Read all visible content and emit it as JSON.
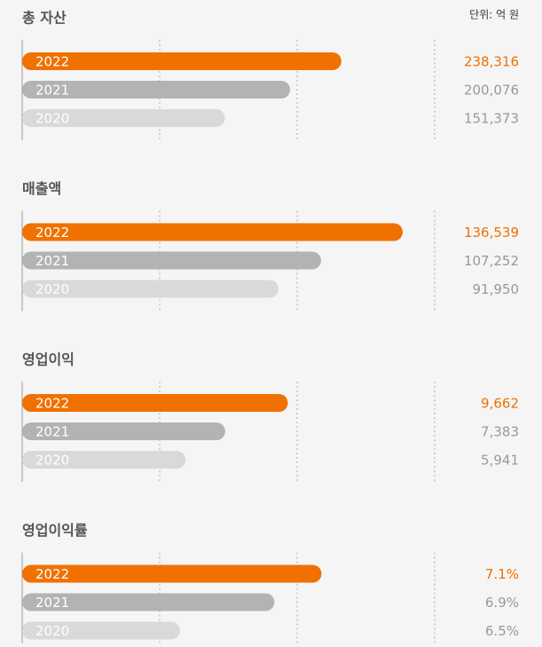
{
  "unit_label": "단위: 억 원",
  "chart_data": [
    {
      "type": "bar",
      "orientation": "horizontal",
      "title": "총 자산",
      "categories": [
        "2022",
        "2021",
        "2020"
      ],
      "values": [
        238316,
        200076,
        151373
      ],
      "value_labels": [
        "238,316",
        "200,076",
        "151,373"
      ],
      "colors": [
        "#f07100",
        "#b3b3b3",
        "#d9d9d9"
      ],
      "xlim": [
        0,
        308000
      ]
    },
    {
      "type": "bar",
      "orientation": "horizontal",
      "title": "매출액",
      "categories": [
        "2022",
        "2021",
        "2020"
      ],
      "values": [
        136539,
        107252,
        91950
      ],
      "value_labels": [
        "136,539",
        "107,252",
        "91,950"
      ],
      "colors": [
        "#f07100",
        "#b3b3b3",
        "#d9d9d9"
      ],
      "xlim": [
        0,
        148000
      ]
    },
    {
      "type": "bar",
      "orientation": "horizontal",
      "title": "영업이익",
      "categories": [
        "2022",
        "2021",
        "2020"
      ],
      "values": [
        9662,
        7383,
        5941
      ],
      "value_labels": [
        "9,662",
        "7,383",
        "5,941"
      ],
      "colors": [
        "#f07100",
        "#b3b3b3",
        "#d9d9d9"
      ],
      "xlim": [
        0,
        15000
      ]
    },
    {
      "type": "bar",
      "orientation": "horizontal",
      "title": "영업이익률",
      "categories": [
        "2022",
        "2021",
        "2020"
      ],
      "values": [
        7.1,
        6.9,
        6.5
      ],
      "value_labels": [
        "7.1%",
        "6.9%",
        "6.5%"
      ],
      "colors": [
        "#f07100",
        "#b3b3b3",
        "#d9d9d9"
      ],
      "xlim": [
        5.83,
        7.58
      ]
    }
  ]
}
